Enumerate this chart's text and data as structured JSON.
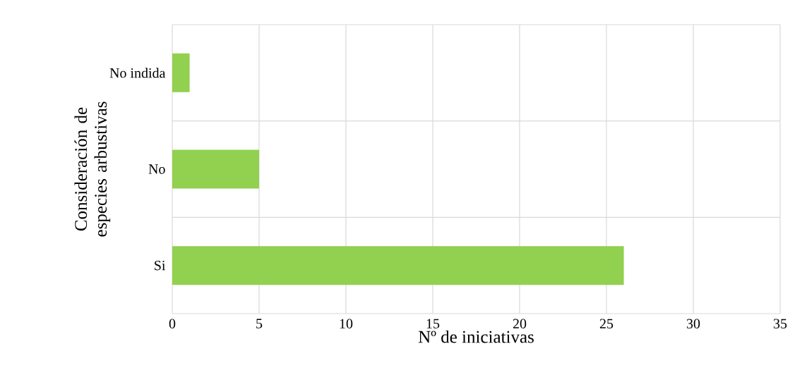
{
  "chart_data": {
    "type": "bar",
    "orientation": "horizontal",
    "xlabel": "Nº de iniciativas",
    "ylabel": "Consideración de especies arbustivas",
    "categories": [
      "No indida",
      "No",
      "Si"
    ],
    "values": [
      1,
      5,
      26
    ],
    "color": "#92d050",
    "xlim": [
      0,
      35
    ],
    "xticks": [
      0,
      5,
      10,
      15,
      20,
      25,
      30,
      35
    ],
    "grid": true
  }
}
